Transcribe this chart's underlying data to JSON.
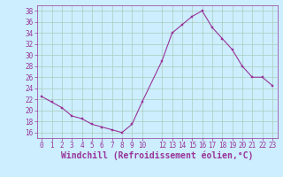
{
  "x": [
    0,
    1,
    2,
    3,
    4,
    5,
    6,
    7,
    8,
    9,
    10,
    12,
    13,
    14,
    15,
    16,
    17,
    18,
    19,
    20,
    21,
    22,
    23
  ],
  "y": [
    22.5,
    21.5,
    20.5,
    19.0,
    18.5,
    17.5,
    17.0,
    16.5,
    16.0,
    17.5,
    21.5,
    29.0,
    34.0,
    35.5,
    37.0,
    38.0,
    35.0,
    33.0,
    31.0,
    28.0,
    26.0,
    26.0,
    24.5
  ],
  "line_color": "#993399",
  "marker_color": "#993399",
  "bg_color": "#cceeff",
  "grid_color": "#aaccbb",
  "xlabel": "Windchill (Refroidissement éolien,°C)",
  "xlabel_color": "#993399",
  "xlim": [
    -0.5,
    23.5
  ],
  "ylim": [
    15,
    39
  ],
  "yticks": [
    16,
    18,
    20,
    22,
    24,
    26,
    28,
    30,
    32,
    34,
    36,
    38
  ],
  "xticks": [
    0,
    1,
    2,
    3,
    4,
    5,
    6,
    7,
    8,
    9,
    10,
    12,
    13,
    14,
    15,
    16,
    17,
    18,
    19,
    20,
    21,
    22,
    23
  ],
  "tick_color": "#993399",
  "tick_fontsize": 5.5,
  "xlabel_fontsize": 7.0,
  "linewidth": 0.8,
  "markersize": 2.0
}
